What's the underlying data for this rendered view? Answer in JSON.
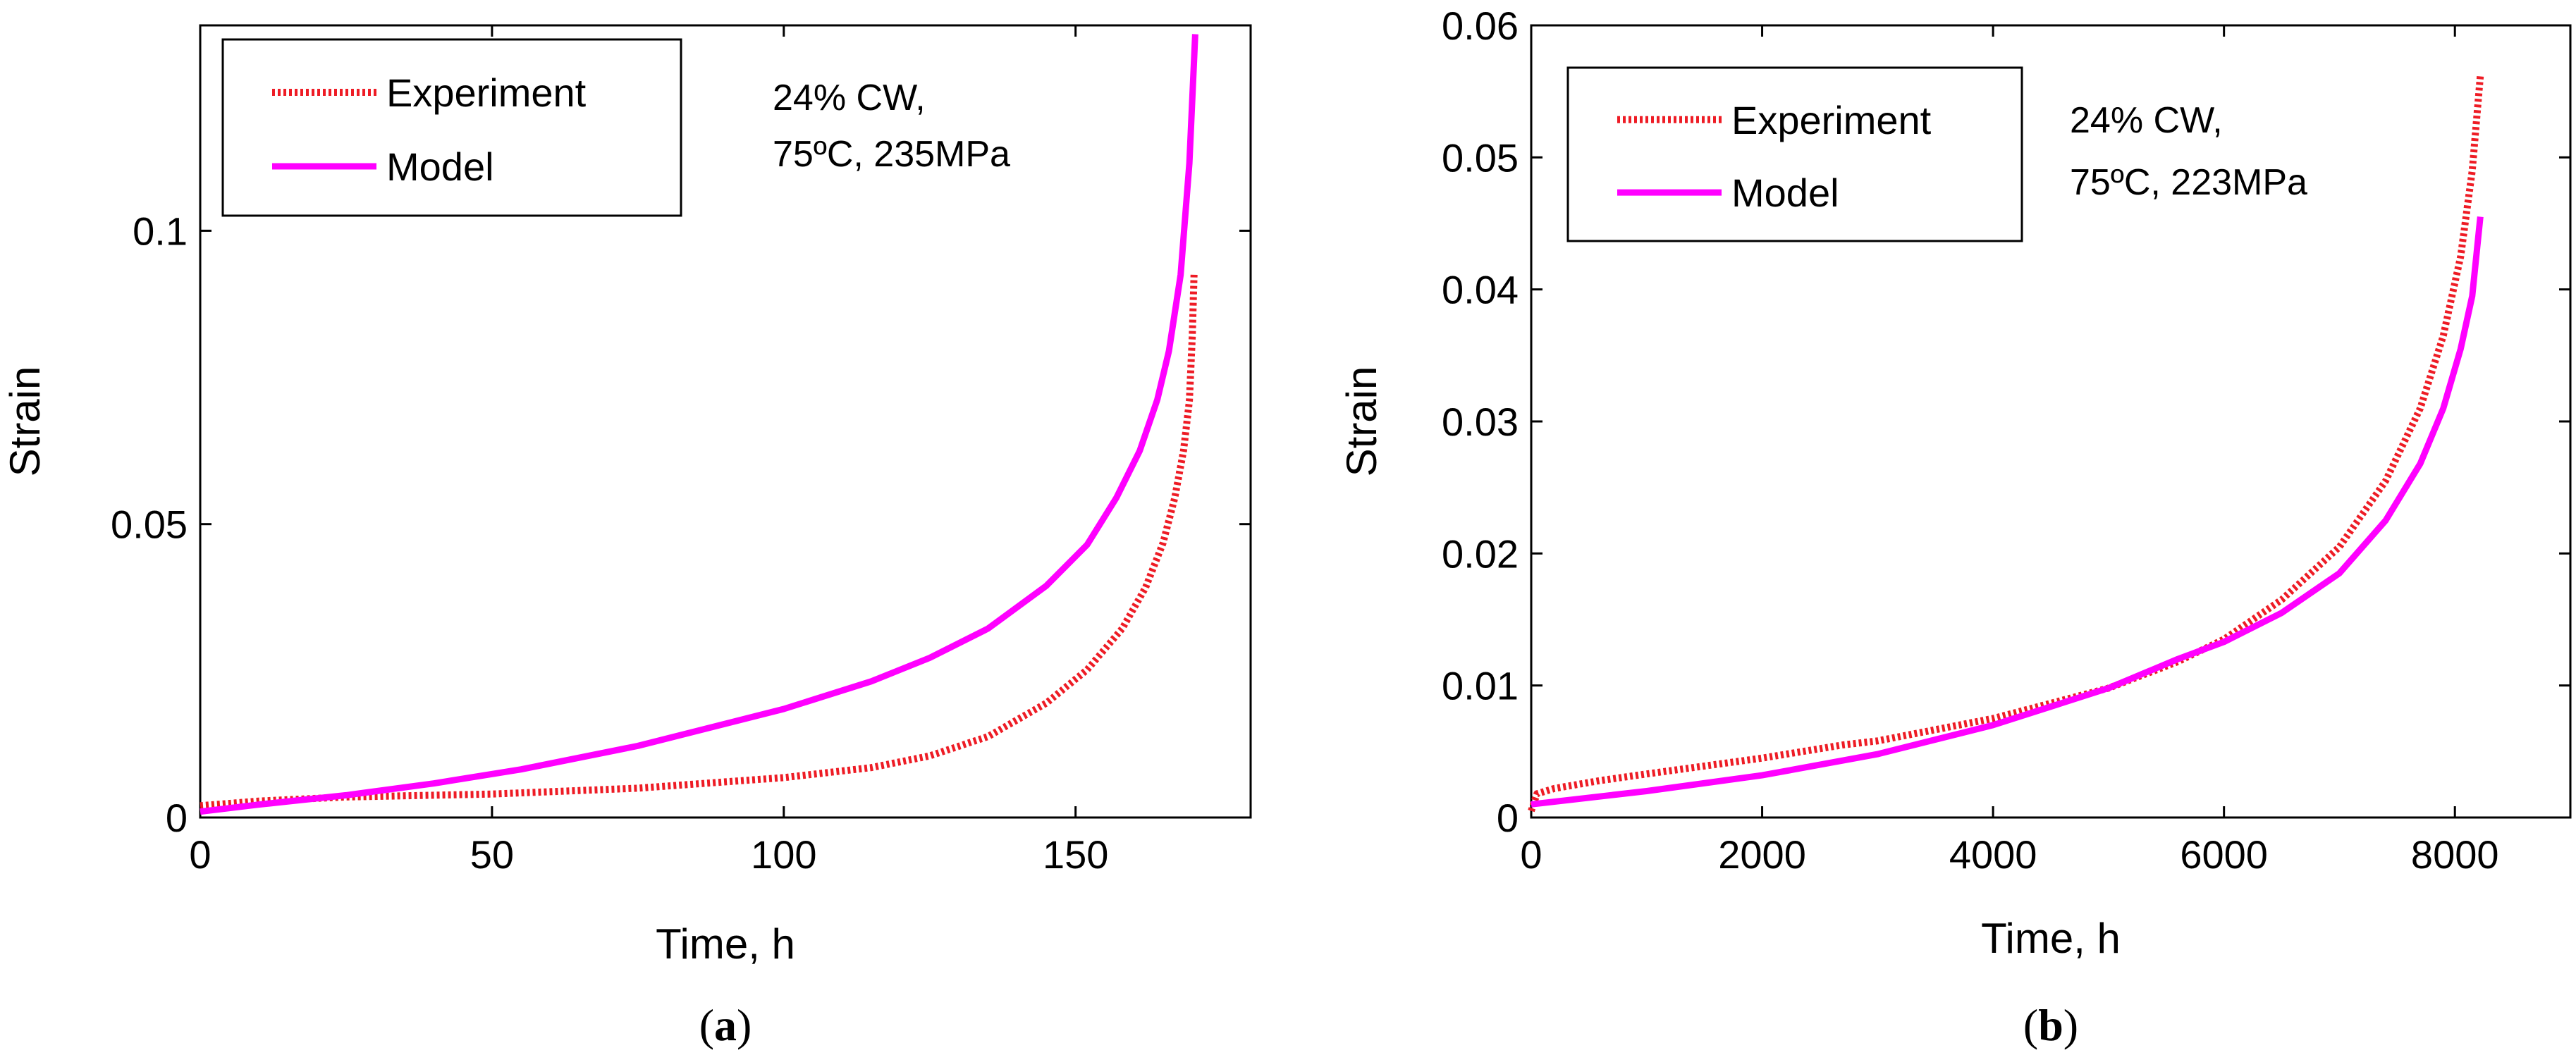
{
  "figure": {
    "panels": [
      {
        "id": "a",
        "label_open": "(",
        "label_letter": "a",
        "label_close": ")"
      },
      {
        "id": "b",
        "label_open": "(",
        "label_letter": "b",
        "label_close": ")"
      }
    ]
  },
  "colors": {
    "experiment": "#ee1c25",
    "model": "#ff00ff",
    "axis": "#000000"
  },
  "chart_data": [
    {
      "type": "line",
      "panel": "a",
      "title": "",
      "xlabel": "Time, h",
      "ylabel": "Strain",
      "xlim": [
        0,
        180
      ],
      "ylim": [
        0,
        0.135
      ],
      "xticks": [
        0,
        50,
        100,
        150
      ],
      "xtick_labels": [
        "0",
        "50",
        "100",
        "150"
      ],
      "yticks": [
        0,
        0.05,
        0.1
      ],
      "ytick_labels": [
        "0",
        "0.05",
        "0.1"
      ],
      "legend": {
        "placement": "top-left",
        "entries": [
          "Experiment",
          "Model"
        ]
      },
      "annotation": [
        "24% CW,",
        "75ºC, 235MPa"
      ],
      "series": [
        {
          "name": "Experiment",
          "style": "dotted",
          "x": [
            0,
            10,
            25,
            50,
            75,
            100,
            115,
            125,
            135,
            145,
            152,
            158,
            162,
            165,
            167,
            168.5,
            169.5,
            170,
            170.3
          ],
          "y": [
            0.002,
            0.0028,
            0.0035,
            0.004,
            0.005,
            0.0068,
            0.0085,
            0.0105,
            0.0138,
            0.0195,
            0.0252,
            0.0322,
            0.0392,
            0.0468,
            0.0545,
            0.0625,
            0.071,
            0.082,
            0.0925
          ]
        },
        {
          "name": "Model",
          "style": "solid",
          "x": [
            0,
            10,
            25,
            40,
            55,
            75,
            100,
            115,
            125,
            135,
            145,
            152,
            157,
            161,
            164,
            166,
            168,
            169.5,
            170.5
          ],
          "y": [
            0.001,
            0.0022,
            0.0038,
            0.0058,
            0.0082,
            0.0122,
            0.0185,
            0.0232,
            0.0272,
            0.0322,
            0.0395,
            0.0465,
            0.0545,
            0.0625,
            0.0712,
            0.0795,
            0.0925,
            0.1115,
            0.1335
          ]
        }
      ]
    },
    {
      "type": "line",
      "panel": "b",
      "title": "",
      "xlabel": "Time, h",
      "ylabel": "Strain",
      "xlim": [
        0,
        9000
      ],
      "ylim": [
        0,
        0.06
      ],
      "xticks": [
        0,
        2000,
        4000,
        6000,
        8000
      ],
      "xtick_labels": [
        "0",
        "2000",
        "4000",
        "6000",
        "8000"
      ],
      "yticks": [
        0,
        0.01,
        0.02,
        0.03,
        0.04,
        0.05,
        0.06
      ],
      "ytick_labels": [
        "0",
        "0.01",
        "0.02",
        "0.03",
        "0.04",
        "0.05",
        "0.06"
      ],
      "legend": {
        "placement": "top-left",
        "entries": [
          "Experiment",
          "Model"
        ]
      },
      "annotation": [
        "24% CW,",
        "75ºC, 223MPa"
      ],
      "series": [
        {
          "name": "Experiment",
          "style": "dotted",
          "x": [
            0,
            50,
            200,
            600,
            1000,
            2000,
            2700,
            3000,
            4000,
            5000,
            5600,
            6000,
            6500,
            7000,
            7400,
            7700,
            7900,
            8050,
            8150,
            8220
          ],
          "y": [
            0.0005,
            0.0018,
            0.0022,
            0.0028,
            0.0033,
            0.0045,
            0.0055,
            0.0058,
            0.0075,
            0.0098,
            0.0118,
            0.0135,
            0.0165,
            0.0205,
            0.0255,
            0.031,
            0.0365,
            0.0425,
            0.049,
            0.0562
          ]
        },
        {
          "name": "Model",
          "style": "solid",
          "x": [
            0,
            1000,
            2000,
            3000,
            4000,
            5000,
            5600,
            6000,
            6500,
            7000,
            7400,
            7700,
            7900,
            8050,
            8150,
            8220
          ],
          "y": [
            0.001,
            0.002,
            0.0032,
            0.0048,
            0.007,
            0.0098,
            0.012,
            0.0133,
            0.0155,
            0.0185,
            0.0225,
            0.0268,
            0.031,
            0.0355,
            0.0395,
            0.0455
          ]
        }
      ]
    }
  ]
}
